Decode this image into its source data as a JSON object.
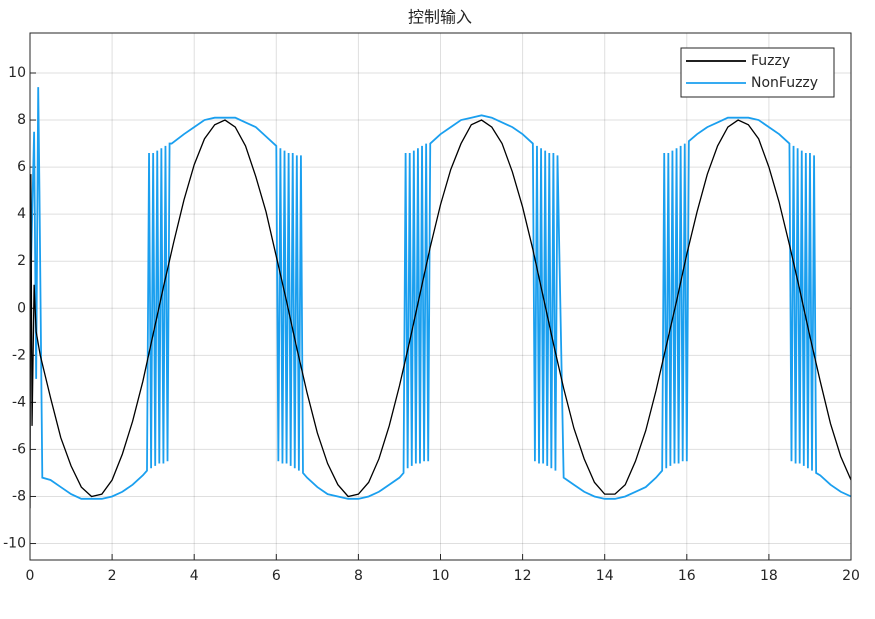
{
  "chart_data": {
    "type": "line",
    "title": "控制输入",
    "xlim": [
      0,
      20
    ],
    "xticks": [
      0,
      2,
      4,
      6,
      8,
      10,
      12,
      14,
      16,
      18,
      20
    ],
    "ylim": [
      -10.7,
      11.7
    ],
    "yticks": [
      -10,
      -8,
      -6,
      -4,
      -2,
      0,
      2,
      4,
      6,
      8,
      10
    ],
    "grid": true,
    "legend": "top-right",
    "series": [
      {
        "name": "Fuzzy",
        "color": "#000000",
        "x": [
          0,
          0.02,
          0.05,
          0.1,
          0.15,
          0.25,
          0.5,
          0.75,
          1,
          1.25,
          1.5,
          1.75,
          2,
          2.25,
          2.5,
          2.75,
          3,
          3.25,
          3.5,
          3.75,
          4,
          4.25,
          4.5,
          4.75,
          5,
          5.25,
          5.5,
          5.75,
          6,
          6.25,
          6.5,
          6.75,
          7,
          7.25,
          7.5,
          7.75,
          8,
          8.25,
          8.5,
          8.75,
          9,
          9.25,
          9.5,
          9.75,
          10,
          10.25,
          10.5,
          10.75,
          11,
          11.25,
          11.5,
          11.75,
          12,
          12.25,
          12.5,
          12.75,
          13,
          13.25,
          13.5,
          13.75,
          14,
          14.25,
          14.5,
          14.75,
          15,
          15.25,
          15.5,
          15.75,
          16,
          16.25,
          16.5,
          16.75,
          17,
          17.25,
          17.5,
          17.75,
          18,
          18.25,
          18.5,
          18.75,
          19,
          19.25,
          19.5,
          19.75,
          20
        ],
        "values": [
          -8.5,
          5.7,
          -5,
          1,
          -1,
          -2.0,
          -3.8,
          -5.5,
          -6.7,
          -7.6,
          -8.0,
          -7.9,
          -7.3,
          -6.2,
          -4.8,
          -3.1,
          -1.1,
          0.9,
          2.8,
          4.6,
          6.1,
          7.2,
          7.8,
          8.0,
          7.7,
          6.9,
          5.6,
          4.1,
          2.2,
          0.3,
          -1.7,
          -3.6,
          -5.3,
          -6.6,
          -7.5,
          -8.0,
          -7.9,
          -7.4,
          -6.4,
          -5.0,
          -3.3,
          -1.4,
          0.6,
          2.6,
          4.4,
          5.9,
          7.0,
          7.8,
          8.0,
          7.7,
          7.0,
          5.8,
          4.3,
          2.5,
          0.5,
          -1.5,
          -3.4,
          -5.1,
          -6.4,
          -7.4,
          -7.9,
          -7.9,
          -7.5,
          -6.5,
          -5.2,
          -3.5,
          -1.6,
          0.3,
          2.3,
          4.1,
          5.7,
          6.9,
          7.7,
          8.0,
          7.8,
          7.2,
          6.0,
          4.5,
          2.7,
          0.8,
          -1.2,
          -3.1,
          -4.9,
          -6.3,
          -7.3
        ]
      },
      {
        "name": "NonFuzzy",
        "color": "#1a9fef",
        "x": [
          0,
          0.1,
          0.15,
          0.2,
          0.23,
          0.3,
          0.5,
          0.75,
          1,
          1.25,
          1.5,
          1.75,
          2,
          2.25,
          2.5,
          2.75,
          2.85,
          2.9,
          2.95,
          3.0,
          3.05,
          3.1,
          3.15,
          3.2,
          3.25,
          3.3,
          3.35,
          3.4,
          3.45,
          3.75,
          4,
          4.25,
          4.5,
          4.75,
          5,
          5.25,
          5.5,
          5.75,
          6.0,
          6.05,
          6.1,
          6.15,
          6.2,
          6.25,
          6.3,
          6.35,
          6.4,
          6.45,
          6.5,
          6.55,
          6.6,
          6.65,
          6.75,
          7,
          7.25,
          7.5,
          7.75,
          8,
          8.25,
          8.5,
          8.75,
          9,
          9.1,
          9.15,
          9.2,
          9.25,
          9.3,
          9.35,
          9.4,
          9.45,
          9.5,
          9.55,
          9.6,
          9.65,
          9.7,
          9.75,
          10,
          10.25,
          10.5,
          10.75,
          11,
          11.25,
          11.5,
          11.75,
          12,
          12.25,
          12.3,
          12.35,
          12.4,
          12.45,
          12.5,
          12.55,
          12.6,
          12.65,
          12.7,
          12.75,
          12.8,
          12.85,
          13,
          13.25,
          13.5,
          13.75,
          14,
          14.25,
          14.5,
          14.75,
          15,
          15.25,
          15.4,
          15.45,
          15.5,
          15.55,
          15.6,
          15.65,
          15.7,
          15.75,
          15.8,
          15.85,
          15.9,
          15.95,
          16.0,
          16.05,
          16.25,
          16.5,
          16.75,
          17,
          17.25,
          17.5,
          17.75,
          18,
          18.25,
          18.5,
          18.55,
          18.6,
          18.65,
          18.7,
          18.75,
          18.8,
          18.85,
          18.9,
          18.95,
          19.0,
          19.05,
          19.1,
          19.15,
          19.25,
          19.5,
          19.75,
          20
        ],
        "values": [
          0,
          7.5,
          -3,
          9.4,
          5,
          -7.2,
          -7.3,
          -7.6,
          -7.9,
          -8.1,
          -8.1,
          -8.1,
          -8.0,
          -7.8,
          -7.5,
          -7.1,
          -6.9,
          6.6,
          -6.8,
          6.6,
          -6.7,
          6.7,
          -6.6,
          6.8,
          -6.6,
          6.9,
          -6.5,
          7.0,
          7.0,
          7.4,
          7.7,
          8.0,
          8.1,
          8.1,
          8.1,
          7.9,
          7.7,
          7.3,
          6.9,
          -6.5,
          6.8,
          -6.6,
          6.7,
          -6.6,
          6.6,
          -6.7,
          6.6,
          -6.8,
          6.5,
          -6.9,
          6.5,
          -7.0,
          -7.2,
          -7.6,
          -7.9,
          -8.0,
          -8.1,
          -8.1,
          -8.0,
          -7.8,
          -7.5,
          -7.2,
          -7.0,
          6.6,
          -6.8,
          6.6,
          -6.7,
          6.7,
          -6.6,
          6.8,
          -6.6,
          6.9,
          -6.5,
          7.0,
          -6.5,
          7.0,
          7.4,
          7.7,
          8.0,
          8.1,
          8.2,
          8.1,
          7.9,
          7.7,
          7.4,
          7.0,
          -6.5,
          6.9,
          -6.6,
          6.8,
          -6.6,
          6.7,
          -6.7,
          6.6,
          -6.8,
          6.6,
          -6.9,
          6.5,
          -7.2,
          -7.5,
          -7.8,
          -8.0,
          -8.1,
          -8.1,
          -8.0,
          -7.8,
          -7.6,
          -7.2,
          -6.9,
          6.6,
          -6.8,
          6.6,
          -6.7,
          6.7,
          -6.6,
          6.8,
          -6.6,
          6.9,
          -6.5,
          7.0,
          -6.5,
          7.1,
          7.4,
          7.7,
          7.9,
          8.1,
          8.1,
          8.1,
          8.0,
          7.7,
          7.4,
          7.0,
          -6.5,
          6.9,
          -6.6,
          6.8,
          -6.6,
          6.7,
          -6.7,
          6.6,
          -6.8,
          6.6,
          -6.9,
          6.5,
          -7.0,
          -7.1,
          -7.5,
          -7.8,
          -8.0
        ]
      }
    ]
  }
}
